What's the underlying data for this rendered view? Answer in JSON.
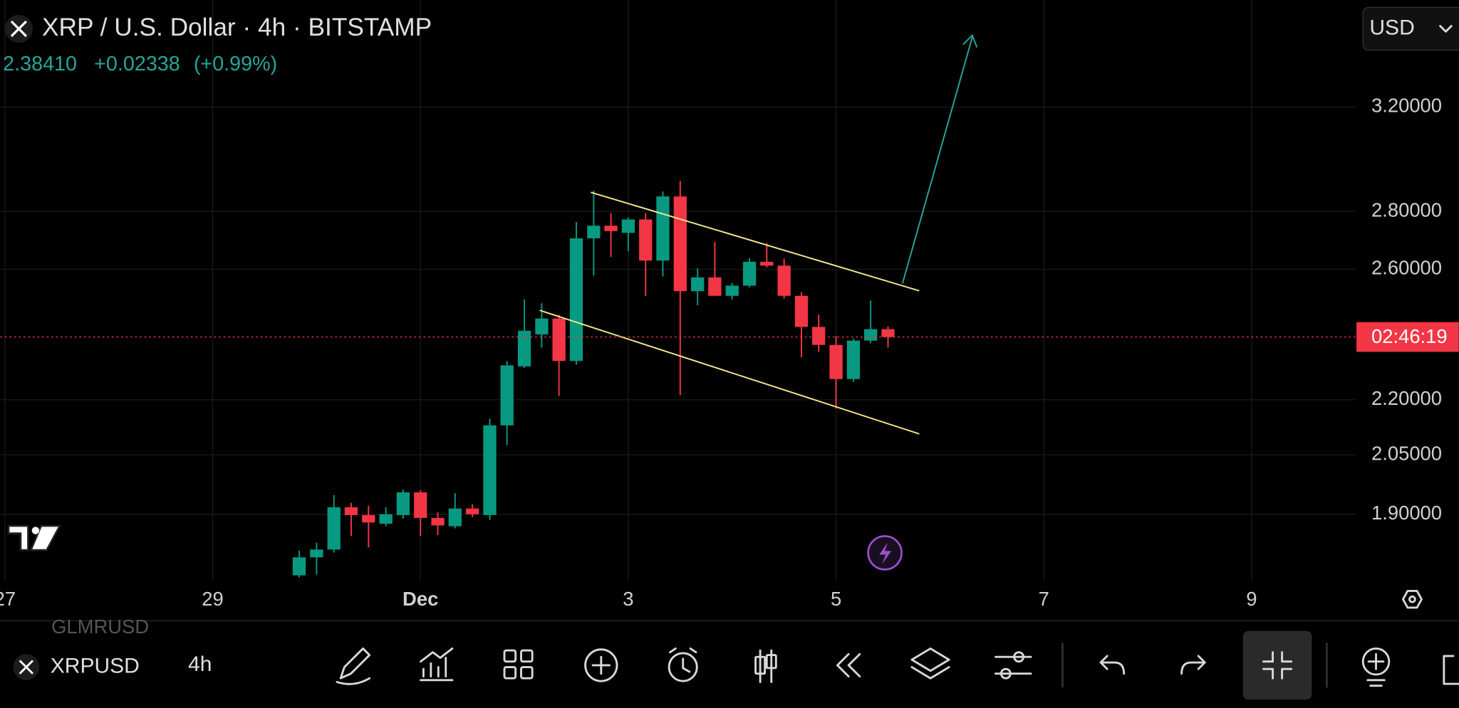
{
  "chart_data": {
    "type": "candlestick",
    "title": "XRP / U.S. Dollar · 4h · BITSTAMP",
    "price": "2.38410",
    "change": "+0.02338",
    "change_pct": "(+0.99%)",
    "countdown": "02:46:19",
    "currency": "USD",
    "x": [
      2.833,
      3,
      3.167,
      3.333,
      3.5,
      3.667,
      3.833,
      4,
      4.167,
      4.333,
      4.5,
      4.667,
      4.833,
      5,
      5.167,
      5.333,
      5.5,
      5.667,
      5.833,
      6,
      6.167,
      6.333,
      6.5,
      6.667,
      6.833,
      7,
      7.167,
      7.333,
      7.5,
      7.667,
      7.833,
      8,
      8.167,
      8.333,
      8.5
    ],
    "open": [
      1.757,
      1.798,
      1.816,
      1.917,
      1.898,
      1.877,
      1.898,
      1.954,
      1.891,
      1.871,
      1.914,
      1.898,
      2.129,
      2.296,
      2.392,
      2.441,
      2.312,
      2.705,
      2.749,
      2.724,
      2.771,
      2.629,
      2.854,
      2.528,
      2.573,
      2.513,
      2.546,
      2.625,
      2.612,
      2.513,
      2.415,
      2.36,
      2.259,
      2.373,
      2.408
    ],
    "high": [
      1.814,
      1.832,
      1.947,
      1.928,
      1.921,
      1.917,
      1.961,
      1.959,
      1.905,
      1.952,
      1.924,
      2.147,
      2.312,
      2.501,
      2.489,
      2.453,
      2.762,
      2.875,
      2.794,
      2.778,
      2.794,
      2.872,
      2.911,
      2.603,
      2.692,
      2.555,
      2.638,
      2.689,
      2.635,
      2.525,
      2.453,
      2.387,
      2.379,
      2.498,
      2.417
    ],
    "low": [
      1.752,
      1.759,
      1.809,
      1.848,
      1.821,
      1.871,
      1.889,
      1.848,
      1.85,
      1.866,
      1.893,
      1.886,
      2.076,
      2.291,
      2.352,
      2.211,
      2.301,
      2.579,
      2.641,
      2.661,
      2.513,
      2.576,
      2.213,
      2.483,
      2.513,
      2.501,
      2.54,
      2.606,
      2.504,
      2.323,
      2.339,
      2.175,
      2.251,
      2.365,
      2.352
    ],
    "close": [
      1.798,
      1.816,
      1.917,
      1.898,
      1.88,
      1.9,
      1.954,
      1.891,
      1.873,
      1.914,
      1.9,
      2.129,
      2.299,
      2.403,
      2.441,
      2.312,
      2.705,
      2.749,
      2.73,
      2.771,
      2.629,
      2.854,
      2.528,
      2.573,
      2.513,
      2.546,
      2.625,
      2.612,
      2.513,
      2.415,
      2.36,
      2.259,
      2.373,
      2.408,
      2.384
    ],
    "up_color": "#089981",
    "down_color": "#f23645",
    "xlim": [
      -0.045,
      13.0
    ],
    "xticks": [
      {
        "value": 0,
        "label": "27"
      },
      {
        "value": 2,
        "label": "29"
      },
      {
        "value": 4,
        "label": "Dec"
      },
      {
        "value": 6,
        "label": "3"
      },
      {
        "value": 8,
        "label": "5"
      },
      {
        "value": 10,
        "label": "7"
      },
      {
        "value": 12,
        "label": "9"
      }
    ],
    "ylim": [
      1.745,
      3.67
    ],
    "log_scale": true,
    "yticks": [
      {
        "value": 3.2,
        "label": "3.20000"
      },
      {
        "value": 2.8,
        "label": "2.80000"
      },
      {
        "value": 2.6,
        "label": "2.60000"
      },
      {
        "value": 2.2,
        "label": "2.20000"
      },
      {
        "value": 2.05,
        "label": "2.05000"
      },
      {
        "value": 1.9,
        "label": "1.90000"
      }
    ],
    "grid": true
  },
  "toolbar": {
    "symbol": "XRPUSD",
    "interval": "4h",
    "watchlist_above": "GLMRUSD"
  }
}
